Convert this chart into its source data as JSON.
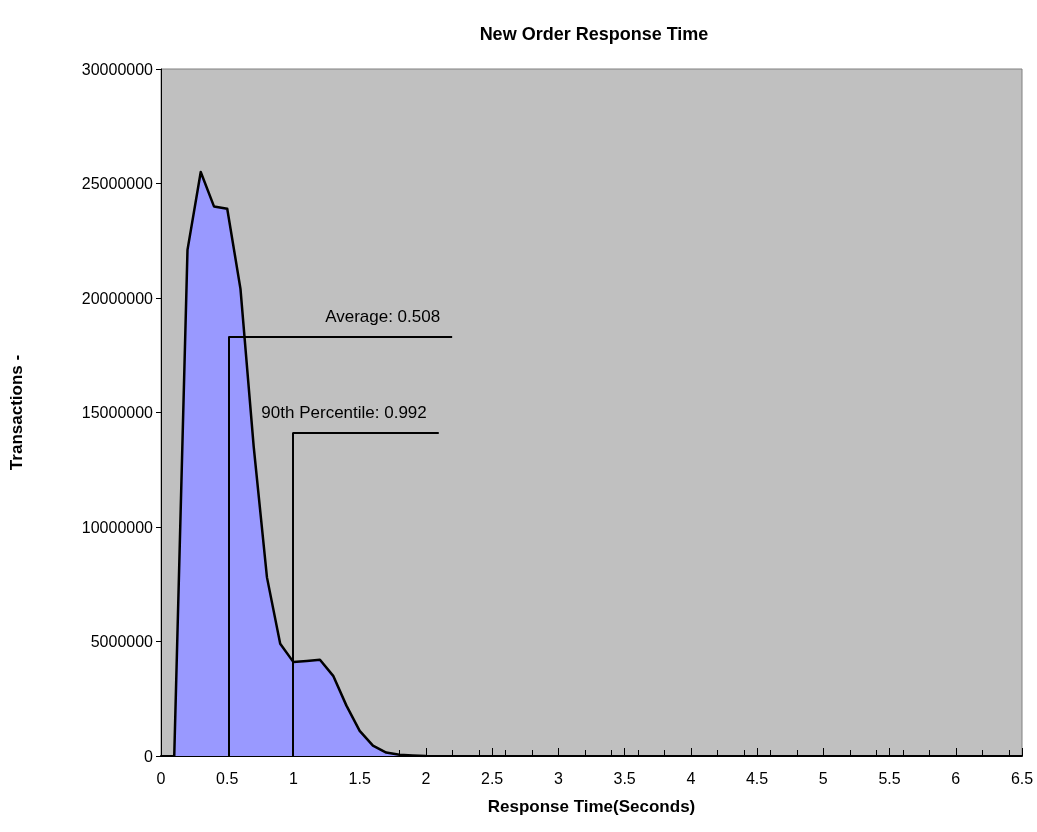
{
  "chart_data": {
    "type": "area",
    "title": "New Order Response Time",
    "xlabel": "Response Time(Seconds)",
    "ylabel": "Transactions -",
    "x": [
      0.1,
      0.2,
      0.3,
      0.4,
      0.5,
      0.6,
      0.7,
      0.8,
      0.9,
      1.0,
      1.1,
      1.2,
      1.3,
      1.4,
      1.5,
      1.6,
      1.7,
      1.8,
      1.9,
      2.0
    ],
    "series": [
      {
        "color": "#9999ff",
        "values": [
          0,
          22100000,
          25500000,
          24000000,
          23900000,
          20400000,
          13500000,
          7800000,
          4900000,
          4100000,
          4150000,
          4200000,
          3500000,
          2200000,
          1100000,
          450000,
          150000,
          50000,
          20000,
          0
        ]
      }
    ],
    "xlim": [
      0,
      6.5
    ],
    "xticks": [
      0,
      0.5,
      1,
      1.5,
      2,
      2.5,
      3,
      3.5,
      4,
      4.5,
      5,
      5.5,
      6,
      6.5
    ],
    "ylim": [
      0,
      30000000
    ],
    "yticks": [
      0,
      5000000,
      10000000,
      15000000,
      20000000,
      25000000,
      30000000
    ],
    "grid": false,
    "marker": "none",
    "line_style": "solid",
    "ref_lines": [
      {
        "axis": "x",
        "value": 0.508,
        "label": "Average: 0.508"
      },
      {
        "axis": "x",
        "value": 0.992,
        "label": "90th Percentile: 0.992"
      }
    ]
  }
}
